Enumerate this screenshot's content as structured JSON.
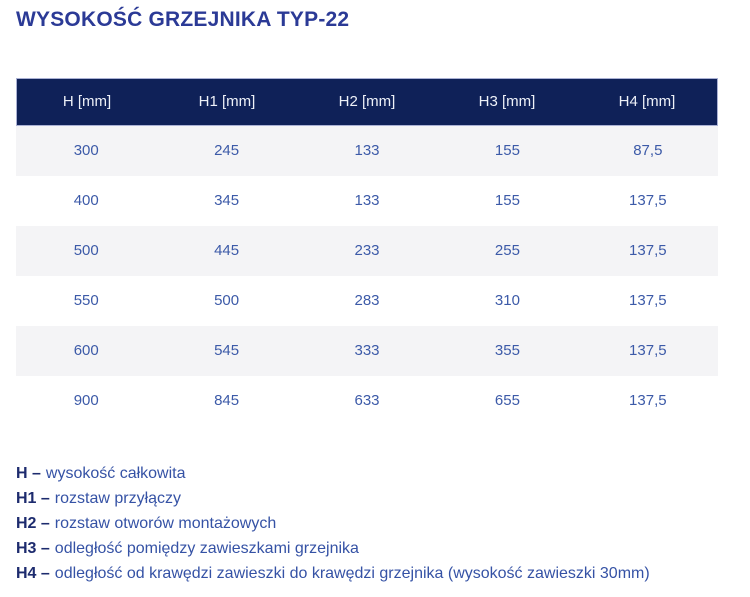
{
  "title": "WYSOKOŚĆ GRZEJNIKA TYP-22",
  "table": {
    "headers": [
      "H [mm]",
      "H1 [mm]",
      "H2 [mm]",
      "H3 [mm]",
      "H4 [mm]"
    ],
    "rows": [
      [
        "300",
        "245",
        "133",
        "155",
        "87,5"
      ],
      [
        "400",
        "345",
        "133",
        "155",
        "137,5"
      ],
      [
        "500",
        "445",
        "233",
        "255",
        "137,5"
      ],
      [
        "550",
        "500",
        "283",
        "310",
        "137,5"
      ],
      [
        "600",
        "545",
        "333",
        "355",
        "137,5"
      ],
      [
        "900",
        "845",
        "633",
        "655",
        "137,5"
      ]
    ]
  },
  "legend": {
    "items": [
      {
        "term": "H –",
        "description": "wysokość całkowita"
      },
      {
        "term": "H1 –",
        "description": "rozstaw przyłączy"
      },
      {
        "term": "H2 –",
        "description": "rozstaw otworów montażowych"
      },
      {
        "term": "H3 –",
        "description": "odległość pomiędzy zawieszkami grzejnika"
      },
      {
        "term": "H4 –",
        "description": "odległość od krawędzi zawieszki do krawędzi grzejnika (wysokość zawieszki 30mm)"
      }
    ]
  },
  "colors": {
    "title_text": "#2b3a96",
    "header_bg": "#0f2158",
    "header_text": "#eef1f8",
    "row_alt_bg": "#f4f4f6",
    "row_bg": "#ffffff",
    "cell_text": "#3c5aa8",
    "legend_term": "#1d2b6e",
    "legend_text": "#3552a5"
  }
}
